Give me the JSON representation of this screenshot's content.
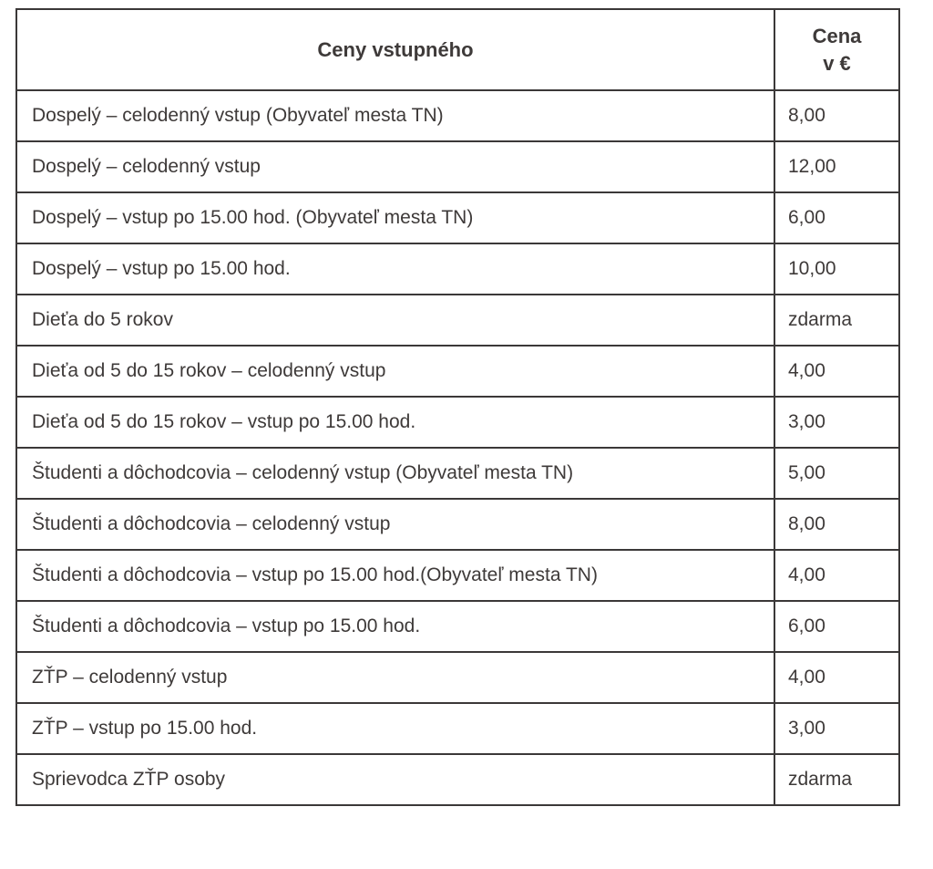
{
  "table": {
    "header": {
      "category": "Ceny vstupného",
      "price_line1": "Cena",
      "price_line2": "v €"
    },
    "rows": [
      {
        "label": "Dospelý – celodenný vstup (Obyvateľ mesta TN)",
        "price": "8,00"
      },
      {
        "label": "Dospelý – celodenný vstup",
        "price": "12,00"
      },
      {
        "label": "Dospelý – vstup po 15.00 hod. (Obyvateľ mesta TN)",
        "price": "6,00"
      },
      {
        "label": "Dospelý – vstup po 15.00 hod.",
        "price": "10,00"
      },
      {
        "label": "Dieťa do 5 rokov",
        "price": "zdarma"
      },
      {
        "label": "Dieťa od 5 do 15 rokov – celodenný vstup",
        "price": "4,00"
      },
      {
        "label": "Dieťa od 5 do 15 rokov – vstup po 15.00 hod.",
        "price": "3,00"
      },
      {
        "label": "Študenti a dôchodcovia – celodenný vstup (Obyvateľ mesta TN)",
        "price": "5,00"
      },
      {
        "label": "Študenti a dôchodcovia – celodenný vstup",
        "price": "8,00"
      },
      {
        "label": "Študenti a dôchodcovia – vstup po 15.00 hod.(Obyvateľ mesta TN)",
        "price": "4,00"
      },
      {
        "label": "Študenti a dôchodcovia – vstup po 15.00 hod.",
        "price": "6,00"
      },
      {
        "label": "ZŤP – celodenný vstup",
        "price": "4,00"
      },
      {
        "label": "ZŤP – vstup po 15.00 hod.",
        "price": "3,00"
      },
      {
        "label": "Sprievodca ZŤP osoby",
        "price": "zdarma"
      }
    ],
    "colors": {
      "border": "#3b3838",
      "text": "#3e3a39",
      "background": "#ffffff"
    }
  }
}
